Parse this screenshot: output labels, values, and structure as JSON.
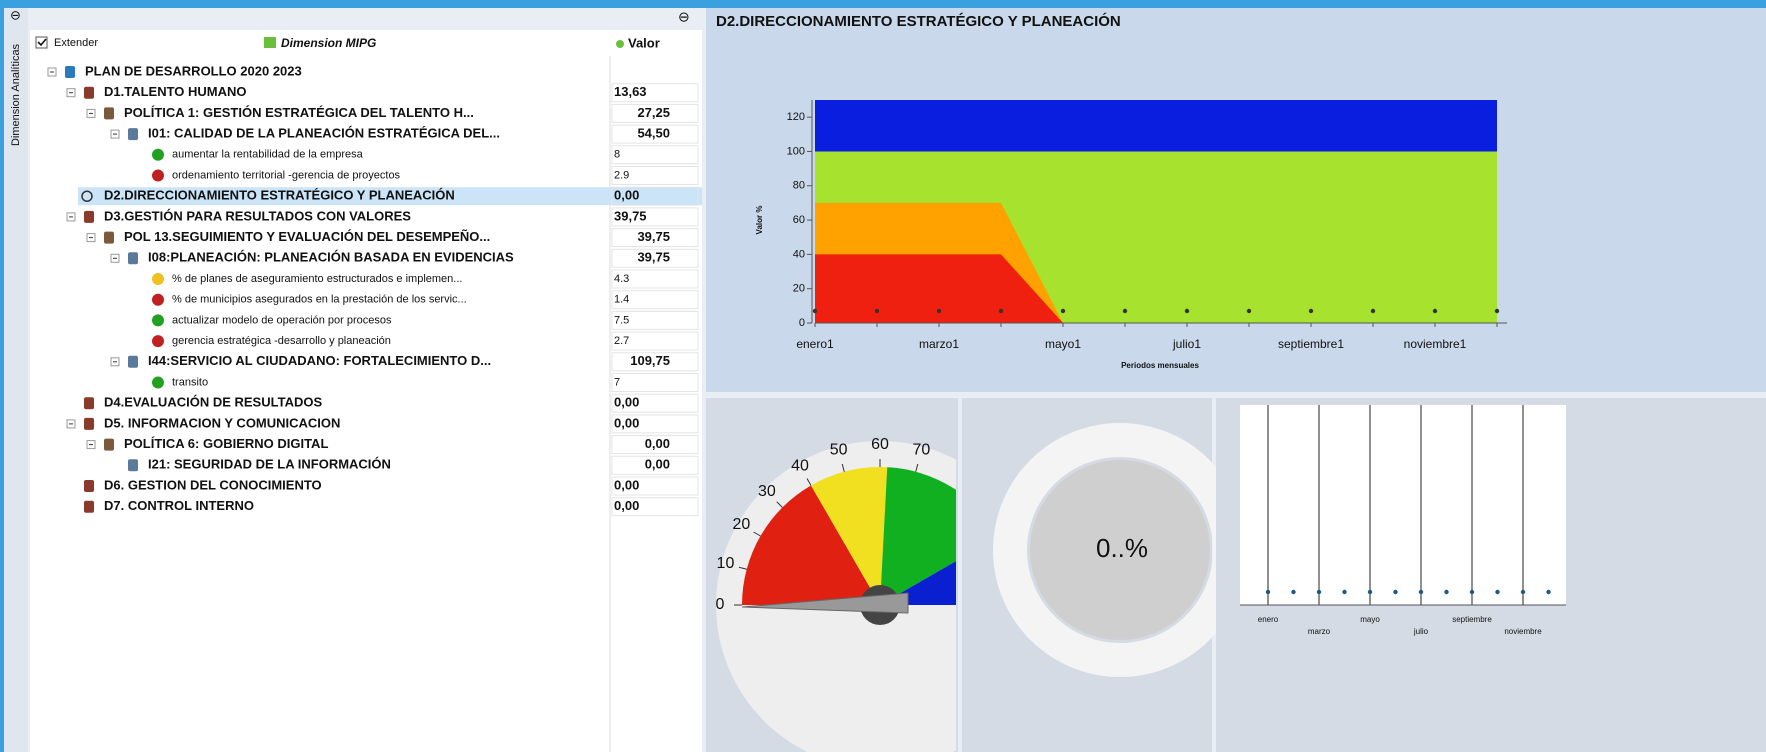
{
  "side_tab": "Dimension Analíticas",
  "tree_header": {
    "checkbox": "Extender",
    "column": "Dimension MIPG",
    "value_column": "Valor"
  },
  "tree": [
    {
      "label": "PLAN DE DESARROLLO 2020 2023",
      "level": 0
    },
    {
      "label": "D1.TALENTO HUMANO",
      "value": "13,63",
      "level": 1
    },
    {
      "label": "POLÍTICA 1: GESTIÓN ESTRATÉGICA DEL TALENTO H...",
      "value": "27,25",
      "level": 2
    },
    {
      "label": "I01: CALIDAD DE LA PLANEACIÓN ESTRATÉGICA DEL...",
      "value": "54,50",
      "level": 3
    },
    {
      "label": "aumentar la rentabilidad de la empresa",
      "value": "8",
      "level": 4,
      "color": "#22a022"
    },
    {
      "label": "ordenamiento territorial -gerencia de proyectos",
      "value": "2.9",
      "level": 4,
      "color": "#c02020"
    },
    {
      "label": "D2.DIRECCIONAMIENTO ESTRATÉGICO Y PLANEACIÓN",
      "value": "0,00",
      "level": 1,
      "selected": true
    },
    {
      "label": "D3.GESTIÓN PARA RESULTADOS CON VALORES",
      "value": "39,75",
      "level": 1
    },
    {
      "label": "POL 13.SEGUIMIENTO Y EVALUACIÓN DEL DESEMPEÑO...",
      "value": "39,75",
      "level": 2
    },
    {
      "label": "I08:PLANEACIÓN: PLANEACIÓN BASADA EN EVIDENCIAS",
      "value": "39,75",
      "level": 3
    },
    {
      "label": "% de planes de aseguramiento estructurados e implemen...",
      "value": "4.3",
      "level": 4,
      "color": "#f0c020"
    },
    {
      "label": "% de municipios asegurados en la prestación de los servic...",
      "value": "1.4",
      "level": 4,
      "color": "#c02020"
    },
    {
      "label": "actualizar modelo de operación por procesos",
      "value": "7.5",
      "level": 4,
      "color": "#22a022"
    },
    {
      "label": "gerencia estratégica -desarrollo y planeación",
      "value": "2.7",
      "level": 4,
      "color": "#c02020"
    },
    {
      "label": "I44:SERVICIO AL CIUDADANO: FORTALECIMIENTO D...",
      "value": "109,75",
      "level": 3
    },
    {
      "label": "transito",
      "value": "7",
      "level": 4,
      "color": "#22a022"
    },
    {
      "label": "D4.EVALUACIÓN DE RESULTADOS",
      "value": "0,00",
      "level": 1
    },
    {
      "label": "D5. INFORMACION Y COMUNICACION",
      "value": "0,00",
      "level": 1
    },
    {
      "label": "POLÍTICA 6: GOBIERNO DIGITAL",
      "value": "0,00",
      "level": 2
    },
    {
      "label": "I21: SEGURIDAD DE LA INFORMACIÓN",
      "value": "0,00",
      "level": 3
    },
    {
      "label": "D6. GESTION DEL CONOCIMIENTO",
      "value": "0,00",
      "level": 1
    },
    {
      "label": "D7. CONTROL INTERNO",
      "value": "0,00",
      "level": 1
    }
  ],
  "panel_title": "D2.DIRECCIONAMIENTO ESTRATÉGICO Y PLANEACIÓN",
  "area_chart": {
    "type": "area",
    "ylabel": "Valor %",
    "xlabel": "Periodos mensuales",
    "categories": [
      "enero1",
      null,
      "marzo1",
      null,
      "mayo1",
      null,
      "julio1",
      null,
      "septiembre1",
      null,
      "noviembre1",
      null
    ],
    "ylim": [
      0,
      130
    ],
    "yticks": [
      0,
      20,
      40,
      60,
      80,
      100,
      120
    ],
    "series": [
      {
        "color": "#0a1ee0",
        "values": [
          130,
          130,
          130,
          130,
          130,
          130,
          130,
          130,
          130,
          130,
          130,
          130
        ]
      },
      {
        "color": "#a6e22e",
        "values": [
          100,
          100,
          100,
          100,
          100,
          100,
          100,
          100,
          100,
          100,
          100,
          100
        ]
      },
      {
        "color": "#ffa200",
        "values": [
          70,
          70,
          70,
          70,
          0,
          0,
          0,
          0,
          0,
          0,
          0,
          0
        ]
      },
      {
        "color": "#f02010",
        "values": [
          40,
          40,
          40,
          40,
          0,
          0,
          0,
          0,
          0,
          0,
          0,
          0
        ]
      }
    ],
    "points": {
      "color": "#333333",
      "values": [
        0,
        0,
        0,
        0,
        0,
        0,
        0,
        0,
        0,
        0,
        0,
        0
      ]
    }
  },
  "gauge": {
    "type": "gauge",
    "ylim": [
      0,
      120
    ],
    "yticks": [
      0,
      10,
      20,
      30,
      40,
      50,
      60,
      70
    ],
    "bands": [
      {
        "from": 0,
        "to": 40,
        "color": "#e02010"
      },
      {
        "from": 40,
        "to": 62,
        "color": "#f0e020"
      },
      {
        "from": 62,
        "to": 100,
        "color": "#10b020"
      },
      {
        "from": 100,
        "to": 120,
        "color": "#0a20d0"
      }
    ],
    "value": 0
  },
  "donut": {
    "label": "0..%"
  },
  "mini_chart": {
    "type": "scatter",
    "categories": [
      "enero",
      null,
      "marzo",
      null,
      "mayo",
      null,
      "julio",
      null,
      "septiembre",
      null,
      "noviembre",
      null
    ],
    "values": [
      0,
      0,
      0,
      0,
      0,
      0,
      0,
      0,
      0,
      0,
      0,
      0
    ],
    "color": "#1a5a8a"
  }
}
